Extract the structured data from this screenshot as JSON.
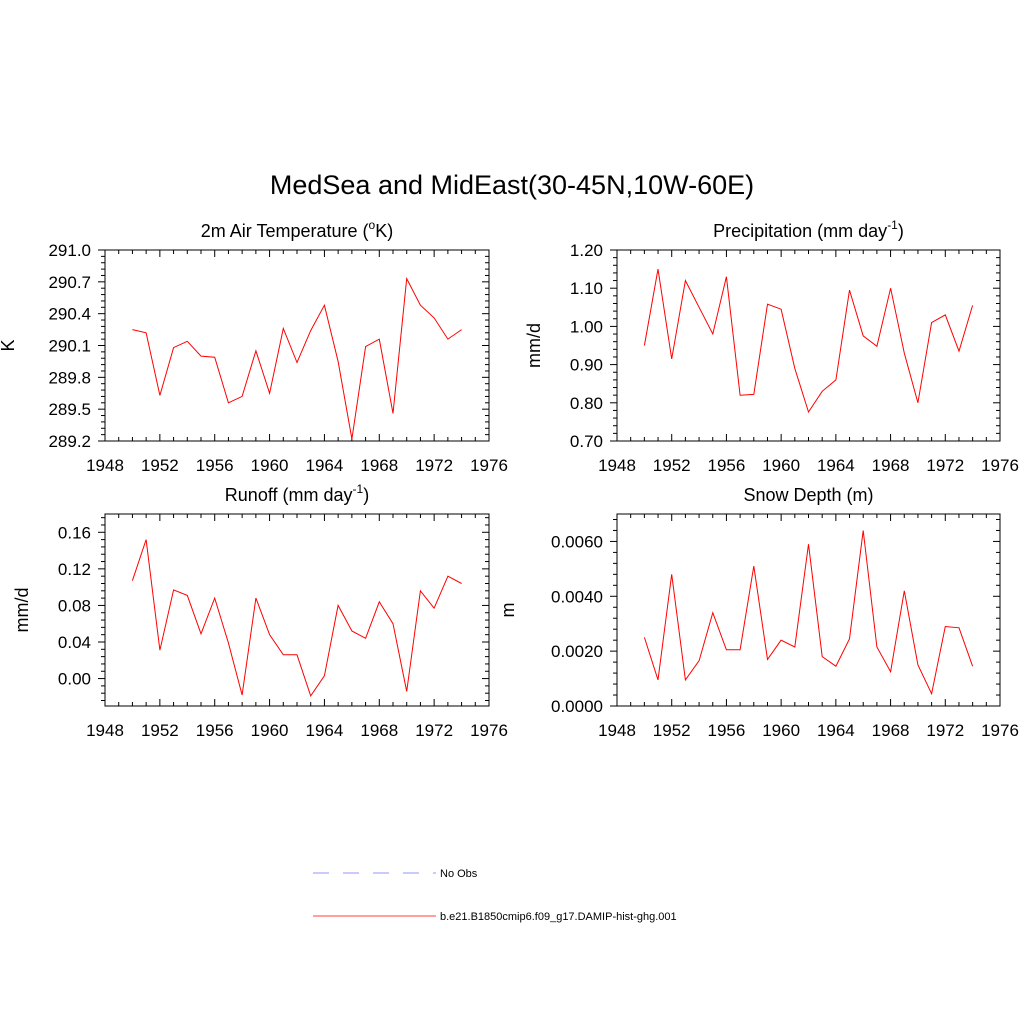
{
  "title": "MedSea and MidEast(30-45N,10W-60E)",
  "chart_data": [
    {
      "type": "line",
      "title": "2m Air Temperature (°K)",
      "ylabel": "K",
      "xlim": [
        1948,
        1976
      ],
      "ylim": [
        289.2,
        291.0
      ],
      "xticks": [
        1948,
        1952,
        1956,
        1960,
        1964,
        1968,
        1972,
        1976
      ],
      "yticks": [
        "289.2",
        "289.5",
        "289.8",
        "290.1",
        "290.4",
        "290.7",
        "291.0"
      ],
      "x": [
        1950,
        1951,
        1952,
        1953,
        1954,
        1955,
        1956,
        1957,
        1958,
        1959,
        1960,
        1961,
        1962,
        1963,
        1964,
        1965,
        1966,
        1967,
        1968,
        1969,
        1970,
        1971,
        1972,
        1973,
        1974
      ],
      "series": [
        {
          "name": "b.e21.B1850cmip6.f09_g17.DAMIP-hist-ghg.001",
          "color": "#ff0000",
          "values": [
            290.25,
            290.22,
            289.63,
            290.08,
            290.14,
            290.0,
            289.99,
            289.56,
            289.62,
            290.05,
            289.65,
            290.26,
            289.94,
            290.24,
            290.48,
            289.95,
            289.22,
            290.09,
            290.16,
            289.46,
            290.73,
            290.48,
            290.36,
            290.16,
            290.25
          ]
        }
      ]
    },
    {
      "type": "line",
      "title": "Precipitation (mm day-1)",
      "ylabel": "mm/d",
      "xlim": [
        1948,
        1976
      ],
      "ylim": [
        0.7,
        1.2
      ],
      "xticks": [
        1948,
        1952,
        1956,
        1960,
        1964,
        1968,
        1972,
        1976
      ],
      "yticks": [
        "0.70",
        "0.80",
        "0.90",
        "1.00",
        "1.10",
        "1.20"
      ],
      "x": [
        1950,
        1951,
        1952,
        1953,
        1954,
        1955,
        1956,
        1957,
        1958,
        1959,
        1960,
        1961,
        1962,
        1963,
        1964,
        1965,
        1966,
        1967,
        1968,
        1969,
        1970,
        1971,
        1972,
        1973,
        1974
      ],
      "series": [
        {
          "name": "b.e21.B1850cmip6.f09_g17.DAMIP-hist-ghg.001",
          "color": "#ff0000",
          "values": [
            0.95,
            1.15,
            0.915,
            1.12,
            1.05,
            0.98,
            1.13,
            0.82,
            0.822,
            1.058,
            1.045,
            0.89,
            0.776,
            0.83,
            0.86,
            1.095,
            0.975,
            0.948,
            1.1,
            0.93,
            0.8,
            1.01,
            1.03,
            0.935,
            1.055
          ]
        }
      ]
    },
    {
      "type": "line",
      "title": "Runoff (mm day-1)",
      "ylabel": "mm/d",
      "xlim": [
        1948,
        1976
      ],
      "ylim": [
        -0.03,
        0.18
      ],
      "xticks": [
        1948,
        1952,
        1956,
        1960,
        1964,
        1968,
        1972,
        1976
      ],
      "yticks": [
        "0.00",
        "0.04",
        "0.08",
        "0.12",
        "0.16"
      ],
      "x": [
        1950,
        1951,
        1952,
        1953,
        1954,
        1955,
        1956,
        1957,
        1958,
        1959,
        1960,
        1961,
        1962,
        1963,
        1964,
        1965,
        1966,
        1967,
        1968,
        1969,
        1970,
        1971,
        1972,
        1973,
        1974
      ],
      "series": [
        {
          "name": "b.e21.B1850cmip6.f09_g17.DAMIP-hist-ghg.001",
          "color": "#ff0000",
          "values": [
            0.107,
            0.152,
            0.031,
            0.097,
            0.091,
            0.049,
            0.088,
            0.039,
            -0.018,
            0.088,
            0.048,
            0.026,
            0.026,
            -0.019,
            0.003,
            0.08,
            0.052,
            0.044,
            0.084,
            0.06,
            -0.014,
            0.096,
            0.077,
            0.112,
            0.104
          ]
        }
      ]
    },
    {
      "type": "line",
      "title": "Snow Depth (m)",
      "ylabel": "m",
      "xlim": [
        1948,
        1976
      ],
      "ylim": [
        0.0,
        0.007
      ],
      "xticks": [
        1948,
        1952,
        1956,
        1960,
        1964,
        1968,
        1972,
        1976
      ],
      "yticks": [
        "0.0000",
        "0.0020",
        "0.0040",
        "0.0060"
      ],
      "x": [
        1950,
        1951,
        1952,
        1953,
        1954,
        1955,
        1956,
        1957,
        1958,
        1959,
        1960,
        1961,
        1962,
        1963,
        1964,
        1965,
        1966,
        1967,
        1968,
        1969,
        1970,
        1971,
        1972,
        1973,
        1974
      ],
      "series": [
        {
          "name": "b.e21.B1850cmip6.f09_g17.DAMIP-hist-ghg.001",
          "color": "#ff0000",
          "values": [
            0.0025,
            0.00095,
            0.0048,
            0.00095,
            0.00165,
            0.0034,
            0.00205,
            0.00205,
            0.0051,
            0.0017,
            0.0024,
            0.00215,
            0.0059,
            0.0018,
            0.00145,
            0.00245,
            0.0064,
            0.00215,
            0.00125,
            0.0042,
            0.0015,
            0.00045,
            0.0029,
            0.00285,
            0.00145
          ]
        }
      ]
    }
  ],
  "legend": {
    "items": [
      {
        "label": "No Obs",
        "color": "#aaaaff",
        "style": "dashed"
      },
      {
        "label": "b.e21.B1850cmip6.f09_g17.DAMIP-hist-ghg.001",
        "color": "#ff6666",
        "style": "solid"
      }
    ]
  }
}
